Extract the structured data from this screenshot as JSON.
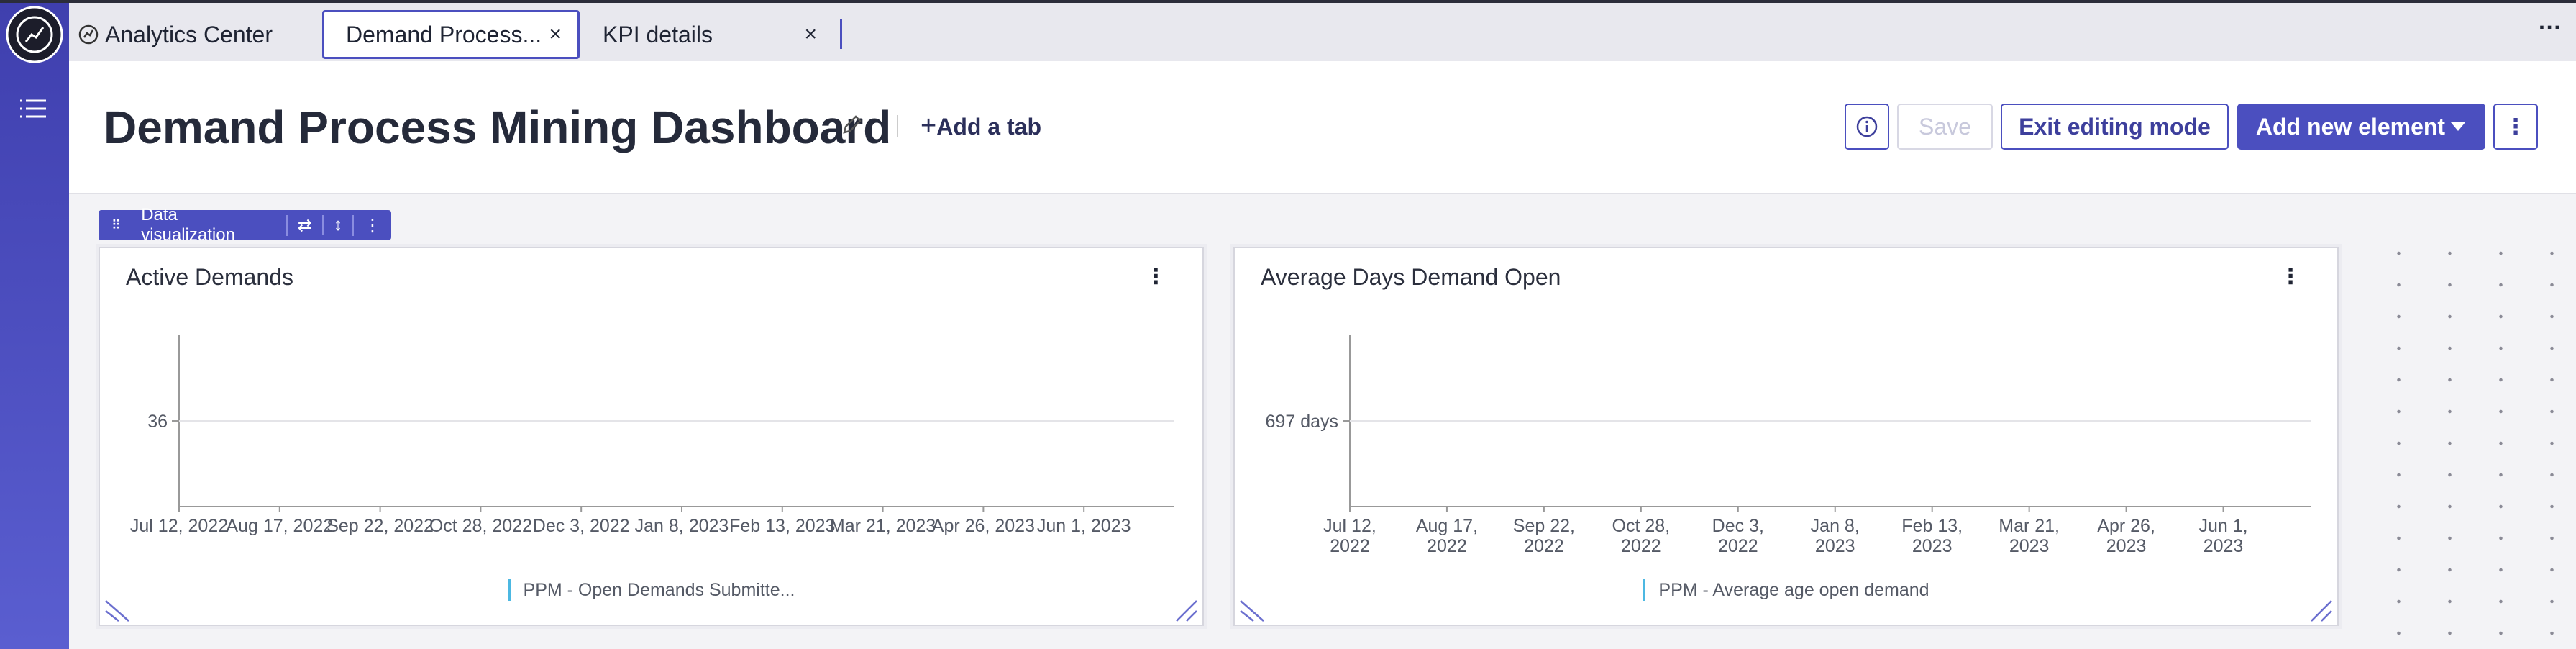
{
  "tabs": [
    {
      "label": "Analytics Center"
    },
    {
      "label": "Demand Process..."
    },
    {
      "label": "KPI details"
    }
  ],
  "header": {
    "title": "Demand Process Mining Dashboard",
    "add_tab": "Add a tab",
    "save": "Save",
    "exit_editing": "Exit editing mode",
    "add_element": "Add new element"
  },
  "widget_toolbar": {
    "label": "Data visualization"
  },
  "widgets": [
    {
      "title": "Active Demands",
      "chart": {
        "type": "line",
        "x": [
          "Jul 12, 2022",
          "Aug 17, 2022",
          "Sep 22, 2022",
          "Oct 28, 2022",
          "Dec 3, 2022",
          "Jan 8, 2023",
          "Feb 13, 2023",
          "Mar 21, 2023",
          "Apr 26, 2023",
          "Jun 1, 2023"
        ],
        "yticks": [
          36
        ],
        "series": [
          {
            "name": "PPM - Open Demands Submitte...",
            "color": "#4cb8e2"
          }
        ]
      }
    },
    {
      "title": "Average Days Demand Open",
      "chart": {
        "type": "line",
        "x": [
          "Jul 12, 2022",
          "Aug 17, 2022",
          "Sep 22, 2022",
          "Oct 28, 2022",
          "Dec 3, 2022",
          "Jan 8, 2023",
          "Feb 13, 2023",
          "Mar 21, 2023",
          "Apr 26, 2023",
          "Jun 1, 2023"
        ],
        "yticks": [
          {
            "value": 697,
            "label": "697 days"
          }
        ],
        "series": [
          {
            "name": "PPM - Average age open demand",
            "color": "#4cb8e2"
          }
        ]
      }
    }
  ]
}
